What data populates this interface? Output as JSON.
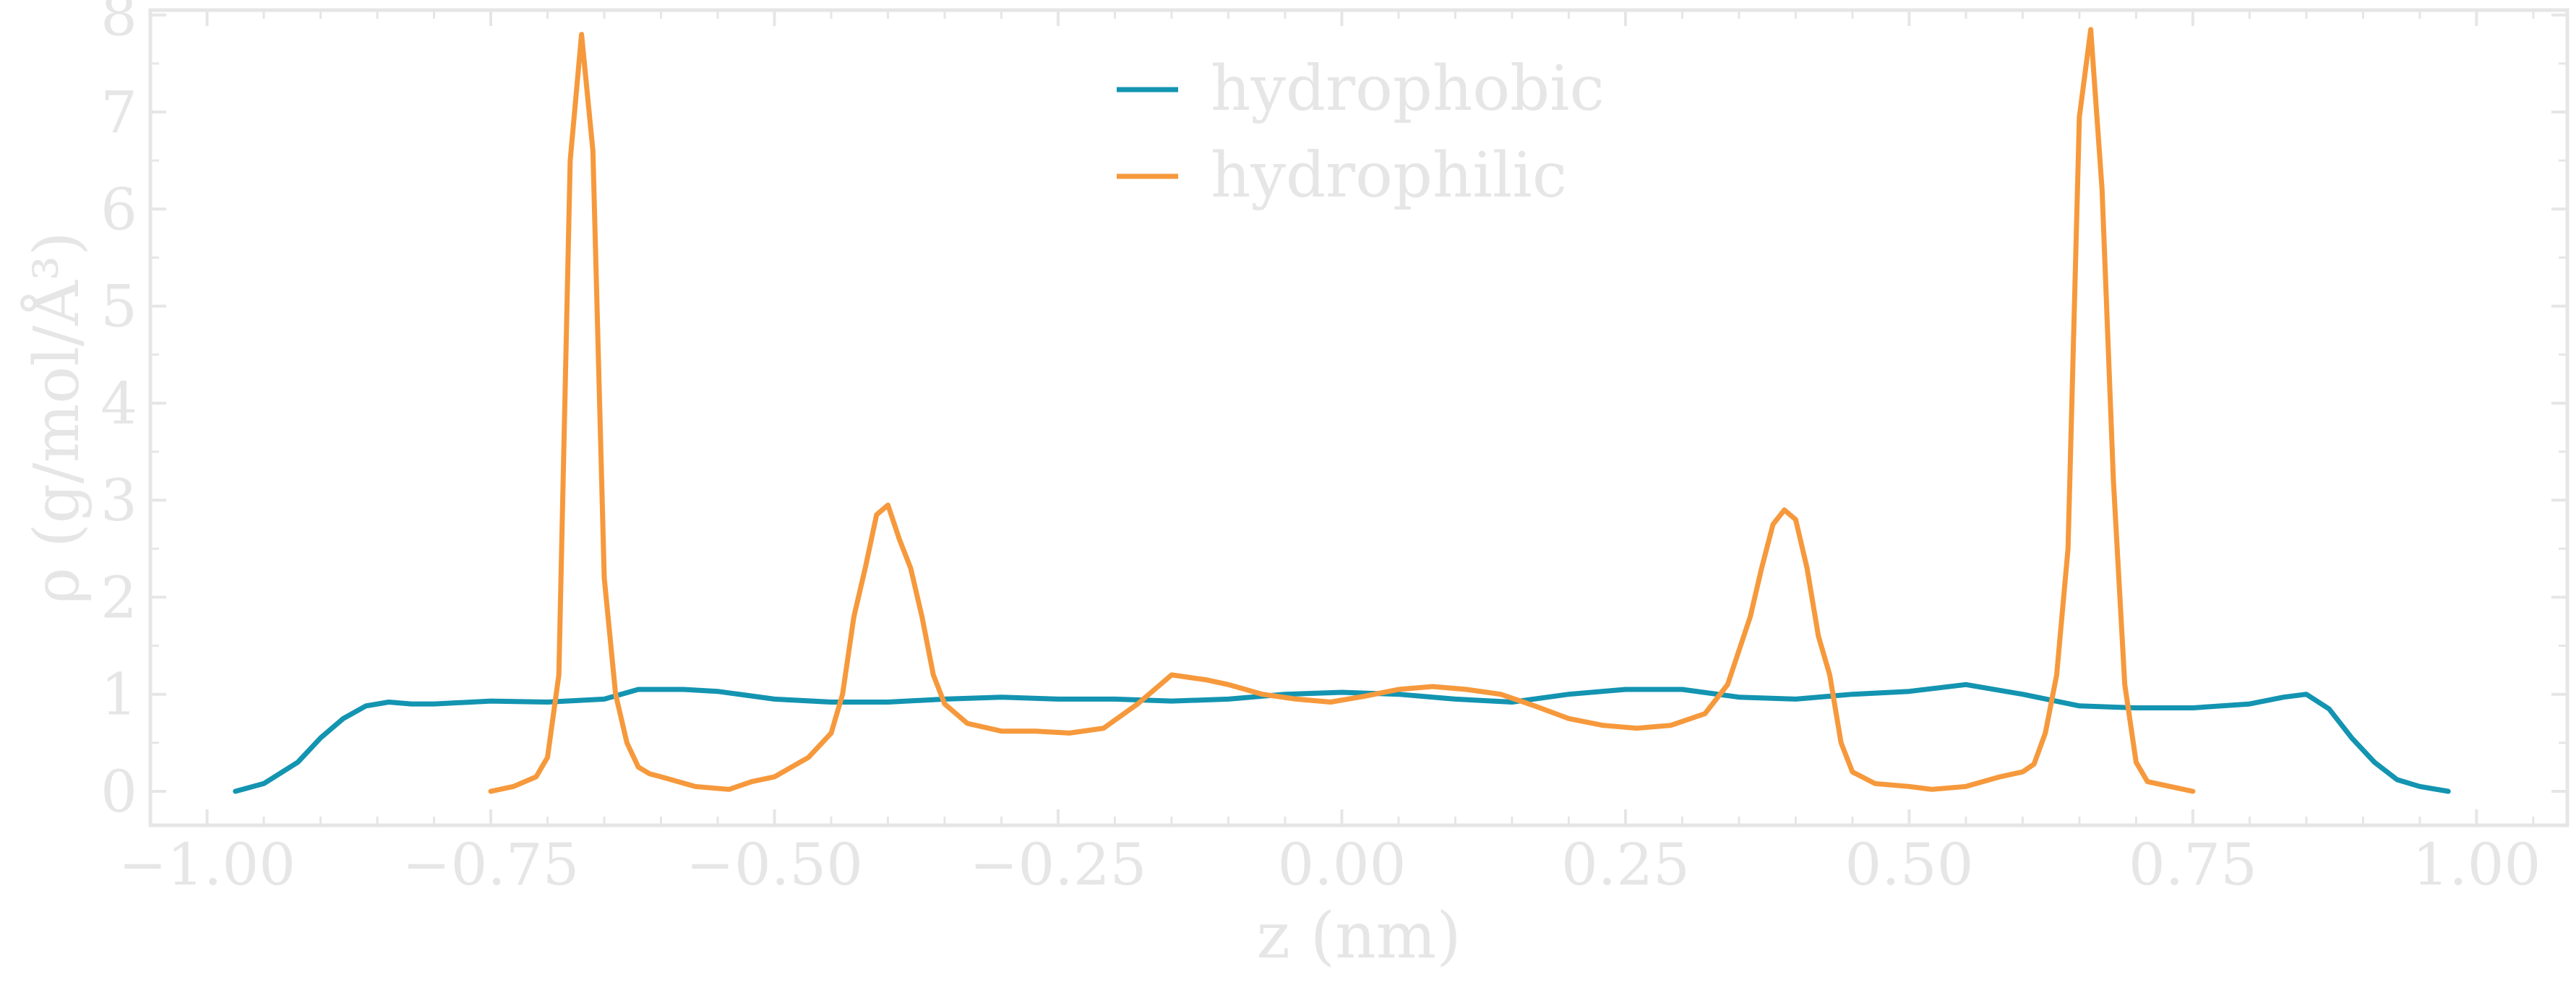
{
  "chart_data": {
    "type": "line",
    "xlabel": "z (nm)",
    "ylabel": "ρ (g/mol/Å³)",
    "xlim": [
      -1.05,
      1.08
    ],
    "ylim": [
      -0.35,
      8.05
    ],
    "xticks": [
      -1.0,
      -0.75,
      -0.5,
      -0.25,
      0.0,
      0.25,
      0.5,
      0.75,
      1.0
    ],
    "xtick_labels": [
      "−1.00",
      "−0.75",
      "−0.50",
      "−0.25",
      "0.00",
      "0.25",
      "0.50",
      "0.75",
      "1.00"
    ],
    "yticks": [
      0,
      1,
      2,
      3,
      4,
      5,
      6,
      7,
      8
    ],
    "ytick_labels": [
      "0",
      "1",
      "2",
      "3",
      "4",
      "5",
      "6",
      "7",
      "8"
    ],
    "grid": false,
    "legend_position": "top-center",
    "series": [
      {
        "name": "hydrophobic",
        "color": "#1394b1",
        "x": [
          -0.975,
          -0.95,
          -0.92,
          -0.9,
          -0.88,
          -0.86,
          -0.84,
          -0.82,
          -0.8,
          -0.75,
          -0.7,
          -0.65,
          -0.62,
          -0.58,
          -0.55,
          -0.5,
          -0.45,
          -0.4,
          -0.35,
          -0.3,
          -0.25,
          -0.2,
          -0.15,
          -0.1,
          -0.05,
          0.0,
          0.05,
          0.1,
          0.15,
          0.2,
          0.25,
          0.3,
          0.35,
          0.4,
          0.45,
          0.5,
          0.55,
          0.6,
          0.65,
          0.7,
          0.75,
          0.8,
          0.83,
          0.85,
          0.87,
          0.89,
          0.91,
          0.93,
          0.95,
          0.975
        ],
        "y": [
          0.0,
          0.08,
          0.3,
          0.55,
          0.75,
          0.88,
          0.92,
          0.9,
          0.9,
          0.93,
          0.92,
          0.95,
          1.05,
          1.05,
          1.03,
          0.95,
          0.92,
          0.92,
          0.95,
          0.97,
          0.95,
          0.95,
          0.93,
          0.95,
          1.0,
          1.02,
          1.0,
          0.95,
          0.92,
          1.0,
          1.05,
          1.05,
          0.97,
          0.95,
          1.0,
          1.03,
          1.1,
          1.0,
          0.88,
          0.86,
          0.86,
          0.9,
          0.97,
          1.0,
          0.85,
          0.55,
          0.3,
          0.12,
          0.05,
          0.0
        ]
      },
      {
        "name": "hydrophilic",
        "color": "#f6993c",
        "x": [
          -0.75,
          -0.73,
          -0.71,
          -0.7,
          -0.69,
          -0.68,
          -0.67,
          -0.66,
          -0.65,
          -0.64,
          -0.63,
          -0.62,
          -0.61,
          -0.6,
          -0.57,
          -0.54,
          -0.52,
          -0.5,
          -0.47,
          -0.45,
          -0.44,
          -0.43,
          -0.42,
          -0.41,
          -0.4,
          -0.39,
          -0.38,
          -0.37,
          -0.36,
          -0.35,
          -0.33,
          -0.3,
          -0.27,
          -0.24,
          -0.21,
          -0.18,
          -0.15,
          -0.12,
          -0.1,
          -0.07,
          -0.04,
          -0.01,
          0.02,
          0.05,
          0.08,
          0.11,
          0.14,
          0.17,
          0.2,
          0.23,
          0.26,
          0.29,
          0.32,
          0.34,
          0.36,
          0.37,
          0.38,
          0.39,
          0.4,
          0.41,
          0.42,
          0.43,
          0.44,
          0.45,
          0.47,
          0.5,
          0.52,
          0.55,
          0.58,
          0.6,
          0.61,
          0.62,
          0.63,
          0.64,
          0.65,
          0.66,
          0.67,
          0.68,
          0.69,
          0.7,
          0.71,
          0.73,
          0.75
        ],
        "y": [
          0.0,
          0.05,
          0.15,
          0.35,
          1.2,
          6.5,
          7.8,
          6.6,
          2.2,
          1.0,
          0.5,
          0.25,
          0.18,
          0.15,
          0.05,
          0.02,
          0.1,
          0.15,
          0.35,
          0.6,
          1.0,
          1.8,
          2.3,
          2.85,
          2.95,
          2.6,
          2.3,
          1.8,
          1.2,
          0.9,
          0.7,
          0.62,
          0.62,
          0.6,
          0.65,
          0.9,
          1.2,
          1.15,
          1.1,
          1.0,
          0.95,
          0.92,
          0.98,
          1.05,
          1.08,
          1.05,
          1.0,
          0.88,
          0.75,
          0.68,
          0.65,
          0.68,
          0.8,
          1.1,
          1.8,
          2.3,
          2.75,
          2.9,
          2.8,
          2.3,
          1.6,
          1.2,
          0.5,
          0.2,
          0.08,
          0.05,
          0.02,
          0.05,
          0.15,
          0.2,
          0.28,
          0.6,
          1.2,
          2.5,
          6.95,
          7.85,
          6.2,
          3.2,
          1.1,
          0.3,
          0.1,
          0.05,
          0.0
        ]
      }
    ]
  }
}
